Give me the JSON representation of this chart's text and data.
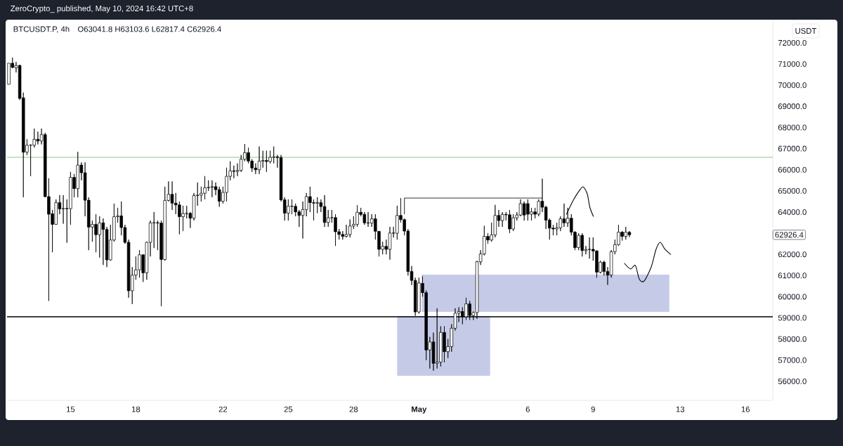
{
  "chart_data": {
    "type": "candlestick",
    "title": "BTCUSDT.P, 4h",
    "subtitle": "O63041.8  H63103.6  L62817.4  C62926.4",
    "ylabel": "USDT",
    "annotations": [
      "ZeroCrypto_ published, May 10, 2024 16:42 UTC+8",
      "62926.4"
    ],
    "series": [
      {
        "type": "line",
        "color": "#333333",
        "x": [
          "2024-04-30T08:00",
          "2024-04-30T08:00",
          "2024-05-06T16:00"
        ],
        "values": [
          63900,
          64660,
          64660
        ]
      }
    ],
    "x": [
      "2024-04-12T04:00",
      "2024-04-12T08:00",
      "2024-04-12T12:00",
      "2024-04-12T16:00",
      "2024-04-12T20:00",
      "2024-04-13T00:00",
      "2024-04-13T04:00",
      "2024-04-13T08:00",
      "2024-04-13T12:00",
      "2024-04-13T16:00",
      "2024-04-13T20:00",
      "2024-04-14T00:00",
      "2024-04-14T04:00",
      "2024-04-14T08:00",
      "2024-04-14T12:00",
      "2024-04-14T16:00",
      "2024-04-14T20:00",
      "2024-04-15T00:00",
      "2024-04-15T04:00",
      "2024-04-15T08:00",
      "2024-04-15T12:00",
      "2024-04-15T16:00",
      "2024-04-15T20:00",
      "2024-04-16T00:00",
      "2024-04-16T04:00",
      "2024-04-16T08:00",
      "2024-04-16T12:00",
      "2024-04-16T16:00",
      "2024-04-16T20:00",
      "2024-04-17T00:00",
      "2024-04-17T04:00",
      "2024-04-17T08:00",
      "2024-04-17T12:00",
      "2024-04-17T16:00",
      "2024-04-17T20:00",
      "2024-04-18T00:00",
      "2024-04-18T04:00",
      "2024-04-18T08:00",
      "2024-04-18T12:00",
      "2024-04-18T16:00",
      "2024-04-18T20:00",
      "2024-04-19T00:00",
      "2024-04-19T04:00",
      "2024-04-19T08:00",
      "2024-04-19T12:00",
      "2024-04-19T16:00",
      "2024-04-19T20:00",
      "2024-04-20T00:00",
      "2024-04-20T04:00",
      "2024-04-20T08:00",
      "2024-04-20T12:00",
      "2024-04-20T16:00",
      "2024-04-20T20:00",
      "2024-04-21T00:00",
      "2024-04-21T04:00",
      "2024-04-21T08:00",
      "2024-04-21T12:00",
      "2024-04-21T16:00",
      "2024-04-21T20:00",
      "2024-04-22T00:00",
      "2024-04-22T04:00",
      "2024-04-22T08:00",
      "2024-04-22T12:00",
      "2024-04-22T16:00",
      "2024-04-22T20:00",
      "2024-04-23T00:00",
      "2024-04-23T04:00",
      "2024-04-23T08:00",
      "2024-04-23T12:00",
      "2024-04-23T16:00",
      "2024-04-23T20:00",
      "2024-04-24T00:00",
      "2024-04-24T04:00",
      "2024-04-24T08:00",
      "2024-04-24T12:00",
      "2024-04-24T16:00",
      "2024-04-24T20:00",
      "2024-04-25T00:00",
      "2024-04-25T04:00",
      "2024-04-25T08:00",
      "2024-04-25T12:00",
      "2024-04-25T16:00",
      "2024-04-25T20:00",
      "2024-04-26T00:00",
      "2024-04-26T04:00",
      "2024-04-26T08:00",
      "2024-04-26T12:00",
      "2024-04-26T16:00",
      "2024-04-26T20:00",
      "2024-04-27T00:00",
      "2024-04-27T04:00",
      "2024-04-27T08:00",
      "2024-04-27T12:00",
      "2024-04-27T16:00",
      "2024-04-27T20:00",
      "2024-04-28T00:00",
      "2024-04-28T04:00",
      "2024-04-28T08:00",
      "2024-04-28T12:00",
      "2024-04-28T16:00",
      "2024-04-28T20:00",
      "2024-04-29T00:00",
      "2024-04-29T04:00",
      "2024-04-29T08:00",
      "2024-04-29T12:00",
      "2024-04-29T16:00",
      "2024-04-29T20:00",
      "2024-04-30T00:00",
      "2024-04-30T04:00",
      "2024-04-30T08:00",
      "2024-04-30T12:00",
      "2024-04-30T16:00",
      "2024-04-30T20:00",
      "2024-05-01T00:00",
      "2024-05-01T04:00",
      "2024-05-01T08:00",
      "2024-05-01T12:00",
      "2024-05-01T16:00",
      "2024-05-01T20:00",
      "2024-05-02T00:00",
      "2024-05-02T04:00",
      "2024-05-02T08:00",
      "2024-05-02T12:00",
      "2024-05-02T16:00",
      "2024-05-02T20:00",
      "2024-05-03T00:00",
      "2024-05-03T04:00",
      "2024-05-03T08:00",
      "2024-05-03T12:00",
      "2024-05-03T16:00",
      "2024-05-03T20:00",
      "2024-05-04T00:00",
      "2024-05-04T04:00",
      "2024-05-04T08:00",
      "2024-05-04T12:00",
      "2024-05-04T16:00",
      "2024-05-04T20:00",
      "2024-05-05T00:00",
      "2024-05-05T04:00",
      "2024-05-05T08:00",
      "2024-05-05T12:00",
      "2024-05-05T16:00",
      "2024-05-05T20:00",
      "2024-05-06T00:00",
      "2024-05-06T04:00",
      "2024-05-06T08:00",
      "2024-05-06T12:00",
      "2024-05-06T16:00",
      "2024-05-06T20:00",
      "2024-05-07T00:00",
      "2024-05-07T04:00",
      "2024-05-07T08:00",
      "2024-05-07T12:00",
      "2024-05-07T16:00",
      "2024-05-07T20:00",
      "2024-05-08T00:00",
      "2024-05-08T04:00",
      "2024-05-08T08:00",
      "2024-05-08T12:00",
      "2024-05-08T16:00",
      "2024-05-08T20:00",
      "2024-05-09T00:00",
      "2024-05-09T04:00",
      "2024-05-09T08:00",
      "2024-05-09T12:00",
      "2024-05-09T16:00",
      "2024-05-09T20:00",
      "2024-05-10T00:00",
      "2024-05-10T04:00",
      "2024-05-10T08:00",
      "2024-05-10T12:00",
      "2024-05-10T16:00"
    ],
    "ohlc": [
      [
        70040,
        71037,
        70040,
        71037
      ],
      [
        71037,
        71300,
        70800,
        70840
      ],
      [
        70820,
        71100,
        70600,
        70930
      ],
      [
        70930,
        70970,
        69300,
        69376
      ],
      [
        69400,
        69650,
        64700,
        66830
      ],
      [
        66830,
        67450,
        66700,
        67160
      ],
      [
        67160,
        67200,
        65700,
        67170
      ],
      [
        67160,
        67950,
        67050,
        67440
      ],
      [
        67440,
        67800,
        67200,
        67360
      ],
      [
        67360,
        67950,
        67200,
        67660
      ],
      [
        67660,
        67750,
        64700,
        64730
      ],
      [
        64730,
        65600,
        59800,
        63900
      ],
      [
        63920,
        64100,
        62100,
        63420
      ],
      [
        63420,
        64600,
        63400,
        64450
      ],
      [
        64450,
        64800,
        63900,
        64150
      ],
      [
        64150,
        64800,
        63450,
        64170
      ],
      [
        64170,
        64600,
        62550,
        64160
      ],
      [
        64160,
        65900,
        63400,
        65640
      ],
      [
        65640,
        65800,
        64700,
        65110
      ],
      [
        65110,
        66850,
        64700,
        66220
      ],
      [
        66220,
        66350,
        65500,
        65860
      ],
      [
        65860,
        66350,
        63800,
        64560
      ],
      [
        64560,
        64700,
        62200,
        63290
      ],
      [
        63290,
        63600,
        62600,
        63420
      ],
      [
        63420,
        63900,
        62100,
        62930
      ],
      [
        62930,
        63800,
        61850,
        63490
      ],
      [
        63490,
        63700,
        61500,
        63180
      ],
      [
        63180,
        63300,
        61400,
        61740
      ],
      [
        61740,
        63400,
        61700,
        62680
      ],
      [
        62680,
        64400,
        62600,
        63780
      ],
      [
        63780,
        64200,
        63500,
        63820
      ],
      [
        63820,
        64500,
        62900,
        63270
      ],
      [
        63270,
        63400,
        62500,
        62570
      ],
      [
        62570,
        62700,
        59950,
        60280
      ],
      [
        60280,
        61400,
        59650,
        61020
      ],
      [
        61020,
        61900,
        60800,
        61270
      ],
      [
        61270,
        62200,
        60900,
        61980
      ],
      [
        61980,
        62000,
        60700,
        61130
      ],
      [
        61130,
        62600,
        60800,
        62570
      ],
      [
        62570,
        63600,
        61900,
        63490
      ],
      [
        63490,
        64000,
        62300,
        63500
      ],
      [
        63500,
        63600,
        62200,
        63480
      ],
      [
        63480,
        63600,
        59550,
        61760
      ],
      [
        61760,
        65200,
        61700,
        64550
      ],
      [
        64550,
        65450,
        64500,
        64840
      ],
      [
        64840,
        65450,
        64100,
        64420
      ],
      [
        64420,
        64900,
        63900,
        64340
      ],
      [
        64340,
        64500,
        62950,
        63780
      ],
      [
        63780,
        64300,
        63100,
        63930
      ],
      [
        63930,
        64300,
        63700,
        63940
      ],
      [
        63940,
        64000,
        63250,
        63710
      ],
      [
        63710,
        64900,
        63600,
        64780
      ],
      [
        64780,
        65400,
        64300,
        64800
      ],
      [
        64800,
        65200,
        64500,
        64890
      ],
      [
        64890,
        65700,
        64600,
        65150
      ],
      [
        65150,
        65500,
        65000,
        65170
      ],
      [
        65170,
        65500,
        64700,
        65200
      ],
      [
        65200,
        65400,
        64800,
        65060
      ],
      [
        65060,
        65200,
        64250,
        64510
      ],
      [
        64510,
        65200,
        64400,
        64930
      ],
      [
        64930,
        66100,
        64500,
        65690
      ],
      [
        65690,
        66400,
        65500,
        65950
      ],
      [
        65950,
        66200,
        65600,
        65920
      ],
      [
        65920,
        66300,
        65700,
        65970
      ],
      [
        65970,
        66700,
        65900,
        66500
      ],
      [
        66500,
        67220,
        66400,
        66810
      ],
      [
        66810,
        67050,
        66300,
        66410
      ],
      [
        66410,
        66500,
        65900,
        66080
      ],
      [
        66080,
        66300,
        65800,
        66000
      ],
      [
        66000,
        67100,
        65800,
        66410
      ],
      [
        66410,
        66900,
        66100,
        66440
      ],
      [
        66440,
        66900,
        65900,
        66390
      ],
      [
        66390,
        66900,
        66300,
        66590
      ],
      [
        66590,
        67100,
        66300,
        66610
      ],
      [
        66610,
        66700,
        66100,
        66580
      ],
      [
        66580,
        66700,
        64500,
        64580
      ],
      [
        64580,
        64700,
        63600,
        63950
      ],
      [
        63950,
        64600,
        63600,
        64280
      ],
      [
        64280,
        64600,
        63900,
        64270
      ],
      [
        64270,
        64400,
        63800,
        64010
      ],
      [
        64010,
        64100,
        63300,
        63840
      ],
      [
        63840,
        64500,
        62750,
        64120
      ],
      [
        64120,
        64900,
        63800,
        64730
      ],
      [
        64730,
        65200,
        64000,
        64450
      ],
      [
        64450,
        64600,
        63600,
        64420
      ],
      [
        64420,
        64700,
        63950,
        64450
      ],
      [
        64450,
        64600,
        64000,
        64260
      ],
      [
        64260,
        64800,
        63300,
        63510
      ],
      [
        63510,
        64100,
        63300,
        63730
      ],
      [
        63730,
        64100,
        63500,
        63740
      ],
      [
        63740,
        63900,
        62400,
        63070
      ],
      [
        63070,
        63200,
        62700,
        62940
      ],
      [
        62940,
        63100,
        62700,
        62850
      ],
      [
        62850,
        63400,
        62800,
        62940
      ],
      [
        62940,
        63650,
        62800,
        63340
      ],
      [
        63340,
        63800,
        63200,
        63420
      ],
      [
        63420,
        64330,
        63300,
        63990
      ],
      [
        63990,
        64200,
        63800,
        63890
      ],
      [
        63890,
        64000,
        63400,
        63490
      ],
      [
        63490,
        64000,
        63300,
        63480
      ],
      [
        63480,
        63900,
        63300,
        63680
      ],
      [
        63680,
        63900,
        62700,
        63090
      ],
      [
        63090,
        63100,
        61900,
        62240
      ],
      [
        62240,
        62600,
        62000,
        62380
      ],
      [
        62380,
        62700,
        62000,
        62240
      ],
      [
        62240,
        63300,
        61750,
        63010
      ],
      [
        63010,
        63300,
        62800,
        63000
      ],
      [
        63000,
        64300,
        62700,
        63840
      ],
      [
        63840,
        64660,
        63500,
        63640
      ],
      [
        63640,
        63700,
        62900,
        63100
      ],
      [
        63100,
        63200,
        61000,
        61190
      ],
      [
        61190,
        61450,
        60550,
        60770
      ],
      [
        60770,
        60900,
        59100,
        59280
      ],
      [
        59280,
        60900,
        59200,
        60650
      ],
      [
        60630,
        60960,
        60000,
        60190
      ],
      [
        60190,
        60300,
        57000,
        57480
      ],
      [
        57480,
        58100,
        56600,
        57860
      ],
      [
        57860,
        58300,
        56500,
        56850
      ],
      [
        56850,
        59450,
        56600,
        56910
      ],
      [
        56910,
        58600,
        56700,
        58310
      ],
      [
        58310,
        58600,
        56900,
        57400
      ],
      [
        57400,
        58000,
        57100,
        57640
      ],
      [
        57640,
        58700,
        57400,
        58510
      ],
      [
        58510,
        59450,
        58400,
        59220
      ],
      [
        59220,
        59500,
        58800,
        59300
      ],
      [
        59300,
        59500,
        58700,
        59050
      ],
      [
        59050,
        59950,
        58900,
        59660
      ],
      [
        59660,
        59800,
        58900,
        59110
      ],
      [
        59110,
        59300,
        58900,
        59250
      ],
      [
        59250,
        61700,
        58950,
        61650
      ],
      [
        61650,
        62200,
        61500,
        62020
      ],
      [
        62020,
        63350,
        61950,
        62850
      ],
      [
        62850,
        63000,
        62500,
        62680
      ],
      [
        62680,
        63500,
        62600,
        62920
      ],
      [
        62920,
        64340,
        62800,
        63840
      ],
      [
        63840,
        64100,
        63300,
        63600
      ],
      [
        63600,
        64000,
        63300,
        63890
      ],
      [
        63890,
        64000,
        63600,
        63870
      ],
      [
        63870,
        64100,
        63000,
        63200
      ],
      [
        63200,
        63900,
        63100,
        63730
      ],
      [
        63730,
        64000,
        63600,
        63860
      ],
      [
        63860,
        64600,
        63800,
        64400
      ],
      [
        64400,
        64500,
        63600,
        63860
      ],
      [
        64400,
        64600,
        63600,
        63900
      ],
      [
        63900,
        64200,
        63600,
        64010
      ],
      [
        64010,
        64200,
        63700,
        63900
      ],
      [
        63900,
        64600,
        63800,
        64510
      ],
      [
        64510,
        65580,
        64000,
        64230
      ],
      [
        64230,
        64300,
        63200,
        63620
      ],
      [
        63620,
        63700,
        62700,
        63240
      ],
      [
        63240,
        63400,
        62900,
        63200
      ],
      [
        63200,
        63500,
        62900,
        63260
      ],
      [
        63260,
        63800,
        63100,
        63680
      ],
      [
        63680,
        64400,
        63300,
        63490
      ],
      [
        63490,
        64200,
        63300,
        63710
      ],
      [
        63710,
        63900,
        62900,
        63050
      ],
      [
        63050,
        63100,
        62200,
        62320
      ],
      [
        62320,
        63000,
        62200,
        62900
      ],
      [
        62900,
        63000,
        61900,
        62180
      ],
      [
        62180,
        62400,
        62000,
        62230
      ],
      [
        62230,
        62800,
        61800,
        62240
      ],
      [
        62240,
        62800,
        61700,
        62160
      ],
      [
        62160,
        62200,
        60900,
        61160
      ],
      [
        61160,
        61700,
        61100,
        61630
      ],
      [
        61630,
        61700,
        61000,
        61190
      ],
      [
        61190,
        61400,
        60560,
        61020
      ],
      [
        61020,
        62200,
        60900,
        62130
      ],
      [
        62130,
        62700,
        62000,
        62460
      ],
      [
        62460,
        63400,
        62400,
        63050
      ],
      [
        63050,
        63100,
        62650,
        62850
      ],
      [
        62850,
        63300,
        62700,
        63050
      ],
      [
        63041.8,
        63103.6,
        62817.4,
        62926.4
      ]
    ],
    "xlim": [
      "2024-04-12T02:00",
      "2024-05-17T06:00"
    ],
    "xticks": [
      {
        "value": "2024-04-15",
        "label": "15"
      },
      {
        "value": "2024-04-18",
        "label": "18"
      },
      {
        "value": "2024-04-22",
        "label": "22"
      },
      {
        "value": "2024-04-25",
        "label": "25"
      },
      {
        "value": "2024-04-28",
        "label": "28"
      },
      {
        "value": "2024-05-01",
        "label": "May"
      },
      {
        "value": "2024-05-06",
        "label": "6"
      },
      {
        "value": "2024-05-09",
        "label": "9"
      },
      {
        "value": "2024-05-13",
        "label": "13"
      },
      {
        "value": "2024-05-16",
        "label": "16"
      }
    ],
    "ylim": [
      55100,
      73030
    ],
    "yticks": [
      {
        "value": 56000,
        "label": "56000.0"
      },
      {
        "value": 57000,
        "label": "57000.0"
      },
      {
        "value": 58000,
        "label": "58000.0"
      },
      {
        "value": 59000,
        "label": "59000.0"
      },
      {
        "value": 60000,
        "label": "60000.0"
      },
      {
        "value": 61000,
        "label": "61000.0"
      },
      {
        "value": 62000,
        "label": "62000.0"
      },
      {
        "value": 64000,
        "label": "64000.0"
      },
      {
        "value": 65000,
        "label": "65000.0"
      },
      {
        "value": 66000,
        "label": "66000.0"
      },
      {
        "value": 67000,
        "label": "67000.0"
      },
      {
        "value": 68000,
        "label": "68000.0"
      },
      {
        "value": 69000,
        "label": "69000.0"
      },
      {
        "value": 70000,
        "label": "70000.0"
      },
      {
        "value": 71000,
        "label": "71000.0"
      },
      {
        "value": 72000,
        "label": "72000.0"
      }
    ],
    "ref_lines": [
      {
        "axis": "y",
        "value": 66590,
        "color": "#81c784",
        "line_style": "solid"
      },
      {
        "axis": "y",
        "value": 59050,
        "color": "#000000",
        "line_style": "solid"
      }
    ]
  }
}
